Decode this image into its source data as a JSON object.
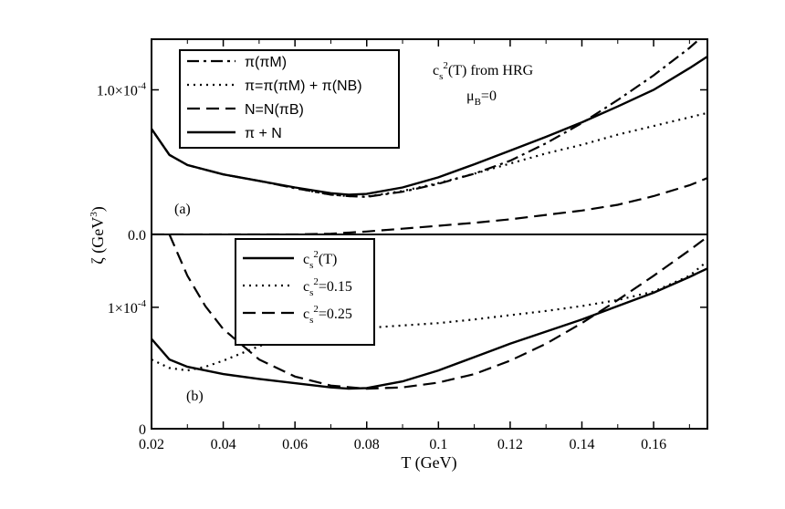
{
  "chart_data": [
    {
      "panel": "(a)",
      "type": "line",
      "annotation": [
        "c_s^2(T) from HRG",
        "μ_B=0"
      ],
      "xlim": [
        0.02,
        0.175
      ],
      "ylim": [
        0,
        0.000135
      ],
      "yticks": [
        {
          "value": 0,
          "label": "0.0"
        },
        {
          "value": 0.0001,
          "label": "1.0×10^-4"
        }
      ],
      "legend": "top-left",
      "series": [
        {
          "name": "π(πM)",
          "style": "dashdot",
          "x": [
            0.02,
            0.025,
            0.03,
            0.04,
            0.05,
            0.06,
            0.07,
            0.075,
            0.08,
            0.09,
            0.1,
            0.11,
            0.12,
            0.13,
            0.14,
            0.15,
            0.16,
            0.17,
            0.175
          ],
          "y": [
            7.3e-05,
            5.5e-05,
            4.8e-05,
            4.15e-05,
            3.7e-05,
            3.2e-05,
            2.75e-05,
            2.65e-05,
            2.6e-05,
            2.95e-05,
            3.5e-05,
            4.2e-05,
            5.1e-05,
            6.3e-05,
            7.7e-05,
            9.3e-05,
            0.00011,
            0.000129,
            0.00014
          ]
        },
        {
          "name": "π=π(πM) + π(NB)",
          "style": "dotted",
          "x": [
            0.02,
            0.025,
            0.03,
            0.04,
            0.05,
            0.06,
            0.07,
            0.075,
            0.08,
            0.09,
            0.1,
            0.11,
            0.12,
            0.13,
            0.14,
            0.15,
            0.16,
            0.17,
            0.175
          ],
          "y": [
            7.3e-05,
            5.5e-05,
            4.8e-05,
            4.15e-05,
            3.7e-05,
            3.2e-05,
            2.75e-05,
            2.65e-05,
            2.62e-05,
            3e-05,
            3.55e-05,
            4.2e-05,
            4.9e-05,
            5.6e-05,
            6.2e-05,
            6.9e-05,
            7.5e-05,
            8.1e-05,
            8.4e-05
          ]
        },
        {
          "name": "N=N(πB)",
          "style": "dashed",
          "x": [
            0.02,
            0.04,
            0.06,
            0.07,
            0.08,
            0.09,
            0.1,
            0.11,
            0.12,
            0.13,
            0.14,
            0.15,
            0.16,
            0.17,
            0.175
          ],
          "y": [
            0,
            0,
            0,
            5e-07,
            2e-06,
            4e-06,
            6e-06,
            8e-06,
            1.05e-05,
            1.35e-05,
            1.65e-05,
            2.05e-05,
            2.65e-05,
            3.4e-05,
            3.9e-05
          ]
        },
        {
          "name": "π + N",
          "style": "solid",
          "x": [
            0.02,
            0.025,
            0.03,
            0.04,
            0.05,
            0.06,
            0.07,
            0.075,
            0.08,
            0.09,
            0.1,
            0.11,
            0.12,
            0.13,
            0.14,
            0.15,
            0.16,
            0.17,
            0.175
          ],
          "y": [
            7.3e-05,
            5.5e-05,
            4.8e-05,
            4.15e-05,
            3.7e-05,
            3.25e-05,
            2.85e-05,
            2.75e-05,
            2.8e-05,
            3.25e-05,
            3.95e-05,
            4.85e-05,
            5.8e-05,
            6.75e-05,
            7.75e-05,
            8.85e-05,
            0.0001,
            0.000115,
            0.000123
          ]
        }
      ]
    },
    {
      "panel": "(b)",
      "type": "line",
      "xlim": [
        0.02,
        0.175
      ],
      "ylim": [
        0,
        0.00016
      ],
      "yticks": [
        {
          "value": 0,
          "label": "0"
        },
        {
          "value": 0.0001,
          "label": "1×10^-4"
        }
      ],
      "legend": "top-left",
      "series": [
        {
          "name": "c_s^2(T)",
          "style": "solid",
          "x": [
            0.02,
            0.025,
            0.03,
            0.04,
            0.05,
            0.06,
            0.07,
            0.075,
            0.08,
            0.09,
            0.1,
            0.11,
            0.12,
            0.13,
            0.14,
            0.15,
            0.16,
            0.17,
            0.175
          ],
          "y": [
            7.4e-05,
            5.7e-05,
            5.1e-05,
            4.5e-05,
            4.1e-05,
            3.75e-05,
            3.4e-05,
            3.3e-05,
            3.35e-05,
            3.9e-05,
            4.8e-05,
            5.9e-05,
            7e-05,
            8e-05,
            9e-05,
            0.000101,
            0.000112,
            0.000125,
            0.000132
          ]
        },
        {
          "name": "c_s^2=0.15",
          "style": "dotted",
          "x": [
            0.02,
            0.025,
            0.03,
            0.035,
            0.04,
            0.05,
            0.06,
            0.07,
            0.08,
            0.09,
            0.1,
            0.11,
            0.12,
            0.13,
            0.14,
            0.15,
            0.16,
            0.17,
            0.175
          ],
          "y": [
            5.7e-05,
            5e-05,
            4.8e-05,
            5.1e-05,
            5.6e-05,
            6.8e-05,
            7.8e-05,
            8.1e-05,
            8.3e-05,
            8.5e-05,
            8.7e-05,
            9e-05,
            9.35e-05,
            9.7e-05,
            0.000101,
            0.000106,
            0.000113,
            0.000126,
            0.000138
          ]
        },
        {
          "name": "c_s^2=0.25",
          "style": "dashed",
          "x": [
            0.025,
            0.03,
            0.035,
            0.04,
            0.05,
            0.06,
            0.07,
            0.08,
            0.09,
            0.1,
            0.11,
            0.12,
            0.13,
            0.14,
            0.15,
            0.16,
            0.17,
            0.175
          ],
          "y": [
            0.00016,
            0.000126,
            0.000101,
            8.2e-05,
            5.7e-05,
            4.3e-05,
            3.55e-05,
            3.3e-05,
            3.4e-05,
            3.8e-05,
            4.5e-05,
            5.6e-05,
            7e-05,
            8.7e-05,
            0.000106,
            0.000126,
            0.000147,
            0.000158
          ]
        }
      ]
    }
  ],
  "axes": {
    "xlabel": "T (GeV)",
    "ylabel": "ζ (GeV^3)",
    "xticks": [
      "0.02",
      "0.04",
      "0.06",
      "0.08",
      "0.1",
      "0.12",
      "0.14",
      "0.16"
    ],
    "xtick_values": [
      0.02,
      0.04,
      0.06,
      0.08,
      0.1,
      0.12,
      0.14,
      0.16
    ]
  }
}
